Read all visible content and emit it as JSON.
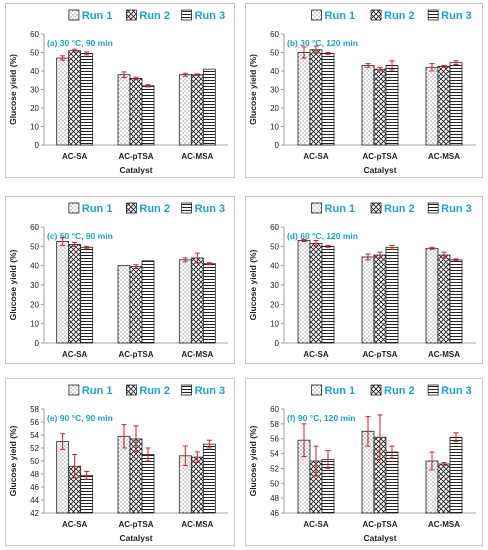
{
  "colors": {
    "accent": "#1aa3d6",
    "bar_stroke": "#222222",
    "error_bar": "#d62020",
    "axis": "#888888"
  },
  "chart_data": [
    {
      "type": "bar",
      "title": "(a) 30 °C, 90 min",
      "xlabel": "Catalyst",
      "ylabel": "Glucose yield (%)",
      "categories": [
        "AC-SA",
        "AC-pTSA",
        "AC-MSA"
      ],
      "ylim": [
        0,
        60
      ],
      "yticks": [
        0,
        10,
        20,
        30,
        40,
        50,
        60
      ],
      "series": [
        {
          "name": "Run 1",
          "pattern": "dots",
          "values": [
            47,
            38,
            38
          ],
          "errors": [
            1.2,
            1.5,
            0.8
          ]
        },
        {
          "name": "Run 2",
          "pattern": "checks",
          "values": [
            51,
            36,
            38
          ],
          "errors": [
            0.8,
            0.6,
            0.4
          ]
        },
        {
          "name": "Run 3",
          "pattern": "hlines",
          "values": [
            49.5,
            32,
            41
          ],
          "errors": [
            0.8,
            0.6,
            0
          ]
        }
      ]
    },
    {
      "type": "bar",
      "title": "(b) 30 °C,  120 min",
      "xlabel": "Catalyst",
      "ylabel": "Glucose yield (%)",
      "categories": [
        "AC-SA",
        "AC-pTSA",
        "AC-MSA"
      ],
      "ylim": [
        0,
        60
      ],
      "yticks": [
        0,
        10,
        20,
        30,
        40,
        50,
        60
      ],
      "series": [
        {
          "name": "Run 1",
          "pattern": "dots",
          "values": [
            50,
            43,
            42
          ],
          "errors": [
            3,
            1,
            2
          ]
        },
        {
          "name": "Run 2",
          "pattern": "checks",
          "values": [
            51.5,
            41,
            42.5
          ],
          "errors": [
            2,
            1,
            0.5
          ]
        },
        {
          "name": "Run 3",
          "pattern": "hlines",
          "values": [
            49.5,
            43,
            44.5
          ],
          "errors": [
            0.5,
            2.5,
            1
          ]
        }
      ]
    },
    {
      "type": "bar",
      "title": "(c) 60 °C, 90 min",
      "xlabel": "",
      "ylabel": "Glucose yield (%)",
      "categories": [
        "AC-SA",
        "AC-pTSA",
        "AC-MSA"
      ],
      "ylim": [
        0,
        60
      ],
      "yticks": [
        0,
        10,
        20,
        30,
        40,
        50,
        60
      ],
      "series": [
        {
          "name": "Run 1",
          "pattern": "dots",
          "values": [
            52.5,
            40,
            43
          ],
          "errors": [
            2,
            0,
            1
          ]
        },
        {
          "name": "Run 2",
          "pattern": "checks",
          "values": [
            51,
            39.5,
            44
          ],
          "errors": [
            1,
            1,
            2.5
          ]
        },
        {
          "name": "Run 3",
          "pattern": "hlines",
          "values": [
            49.5,
            42.5,
            41
          ],
          "errors": [
            0.5,
            0,
            0.5
          ]
        }
      ]
    },
    {
      "type": "bar",
      "title": "(d) 60 °C, 120 min",
      "xlabel": "",
      "ylabel": "Glucose yield (%)",
      "categories": [
        "AC-SA",
        "AC-pTSA",
        "AC-MSA"
      ],
      "ylim": [
        0,
        60
      ],
      "yticks": [
        0,
        10,
        20,
        30,
        40,
        50,
        60
      ],
      "series": [
        {
          "name": "Run 1",
          "pattern": "dots",
          "values": [
            53,
            44.5,
            49
          ],
          "errors": [
            0.5,
            1.5,
            0.5
          ]
        },
        {
          "name": "Run 2",
          "pattern": "checks",
          "values": [
            51.5,
            45.5,
            45.5
          ],
          "errors": [
            1.5,
            1.5,
            1.5
          ]
        },
        {
          "name": "Run 3",
          "pattern": "hlines",
          "values": [
            50,
            49.5,
            43
          ],
          "errors": [
            0.5,
            1,
            0.5
          ]
        }
      ]
    },
    {
      "type": "bar",
      "title": "(e) 90 °C, 90 min",
      "xlabel": "Catalyst",
      "ylabel": "Glucose yield (%)",
      "categories": [
        "AC-SA",
        "AC-pTSA",
        "AC-MSA"
      ],
      "ylim": [
        42,
        58
      ],
      "yticks": [
        42,
        44,
        46,
        48,
        50,
        52,
        54,
        56,
        58
      ],
      "series": [
        {
          "name": "Run 1",
          "pattern": "dots",
          "values": [
            53,
            53.8,
            50.8
          ],
          "errors": [
            1.2,
            1.8,
            1.5
          ]
        },
        {
          "name": "Run 2",
          "pattern": "checks",
          "values": [
            49.2,
            53.4,
            50.6
          ],
          "errors": [
            1.8,
            2,
            0.8
          ]
        },
        {
          "name": "Run 3",
          "pattern": "hlines",
          "values": [
            47.8,
            51,
            52.6
          ],
          "errors": [
            0.6,
            1,
            0.6
          ]
        }
      ]
    },
    {
      "type": "bar",
      "title": "(f) 90 °C, 120 min",
      "xlabel": "Catalyst",
      "ylabel": "Glucose yield (%)",
      "categories": [
        "AC-SA",
        "AC-pTSA",
        "AC-MSA"
      ],
      "ylim": [
        46,
        60
      ],
      "yticks": [
        46,
        48,
        50,
        52,
        54,
        56,
        58,
        60
      ],
      "series": [
        {
          "name": "Run 1",
          "pattern": "dots",
          "values": [
            55.8,
            57,
            53
          ],
          "errors": [
            2.2,
            2,
            1.2
          ]
        },
        {
          "name": "Run 2",
          "pattern": "checks",
          "values": [
            53,
            56.2,
            52.6
          ],
          "errors": [
            2,
            3,
            0.2
          ]
        },
        {
          "name": "Run 3",
          "pattern": "hlines",
          "values": [
            53.2,
            54.2,
            56.2
          ],
          "errors": [
            1.2,
            0.8,
            0.6
          ]
        }
      ]
    }
  ]
}
